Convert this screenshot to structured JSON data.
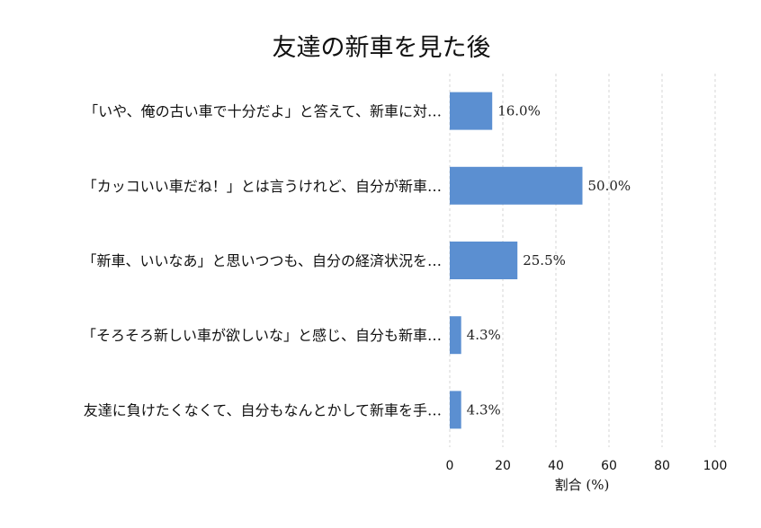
{
  "chart_data": {
    "type": "bar",
    "orientation": "horizontal",
    "title": "友達の新車を見た後",
    "xlabel": "割合 (%)",
    "ylabel": "",
    "xlim": [
      0,
      100
    ],
    "xticks": [
      "0",
      "20",
      "40",
      "60",
      "80",
      "100"
    ],
    "grid": true,
    "categories": [
      "「いや、俺の古い車で十分だよ」と答えて、新車に対…",
      "「カッコいい車だね！」とは言うけれど、自分が新車…",
      "「新車、いいなあ」と思いつつも、自分の経済状況を…",
      "「そろそろ新しい車が欲しいな」と感じ、自分も新車…",
      "友達に負けたくなくて、自分もなんとかして新車を手…"
    ],
    "values": [
      16.0,
      50.0,
      25.5,
      4.3,
      4.3
    ],
    "value_labels": [
      "16.0%",
      "50.0%",
      "25.5%",
      "4.3%",
      "4.3%"
    ],
    "bar_color": "#5b8fd1"
  }
}
